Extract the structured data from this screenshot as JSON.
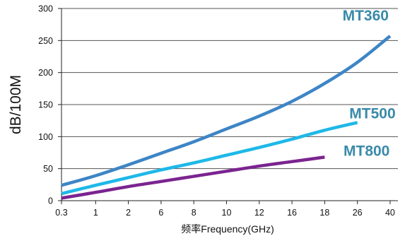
{
  "chart_data": {
    "type": "line",
    "xlabel": "频率Frequency(GHz)",
    "ylabel": "dB/100M",
    "categories": [
      "0.3",
      "1",
      "2",
      "6",
      "8",
      "10",
      "12",
      "16",
      "18",
      "26",
      "40"
    ],
    "ylim": [
      0,
      300
    ],
    "yticks": [
      0,
      50,
      100,
      150,
      200,
      250,
      300
    ],
    "grid": "horizontal",
    "legend": "inline labels at line ends",
    "series": [
      {
        "name": "MT360",
        "color": "#3d85c6",
        "label_color": "#3a8aa8",
        "points": [
          [
            0,
            24
          ],
          [
            1,
            39
          ],
          [
            2,
            56
          ],
          [
            3,
            74
          ],
          [
            4,
            92
          ],
          [
            5,
            112
          ],
          [
            6,
            132
          ],
          [
            7,
            155
          ],
          [
            8,
            183
          ],
          [
            9,
            216
          ],
          [
            10,
            257
          ]
        ]
      },
      {
        "name": "MT500",
        "color": "#1eb8e8",
        "label_color": "#3a8aa8",
        "points": [
          [
            0,
            11
          ],
          [
            1,
            24
          ],
          [
            2,
            36
          ],
          [
            3,
            48
          ],
          [
            4,
            59
          ],
          [
            5,
            71
          ],
          [
            6,
            83
          ],
          [
            7,
            96
          ],
          [
            8,
            110
          ],
          [
            9,
            122
          ]
        ]
      },
      {
        "name": "MT800",
        "color": "#7b2490",
        "label_color": "#3a8aa8",
        "points": [
          [
            0,
            4
          ],
          [
            1,
            13
          ],
          [
            2,
            22
          ],
          [
            3,
            30
          ],
          [
            4,
            38
          ],
          [
            5,
            46
          ],
          [
            6,
            54
          ],
          [
            7,
            61
          ],
          [
            8,
            68
          ]
        ]
      }
    ]
  }
}
